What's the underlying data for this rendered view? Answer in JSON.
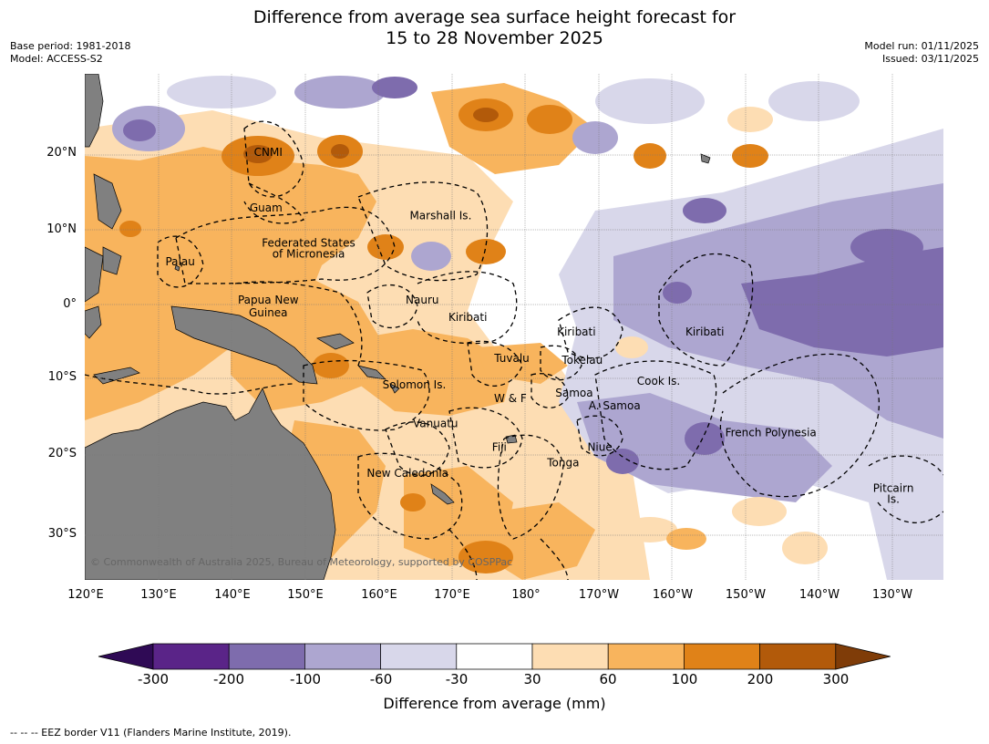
{
  "title_line1": "Difference from average sea surface height forecast for",
  "title_line2": "15 to 28 November 2025",
  "meta_left": {
    "base_period": "Base period: 1981-2018",
    "model": "Model: ACCESS-S2"
  },
  "meta_right": {
    "model_run": "Model run: 01/11/2025",
    "issued": "Issued: 03/11/2025"
  },
  "copyright": "© Commonwealth of Australia 2025, Bureau of Meteorology, supported by COSPPac",
  "lat_labels": [
    "20°N",
    "10°N",
    "0°",
    "10°S",
    "20°S",
    "30°S"
  ],
  "lon_labels": [
    "120°E",
    "130°E",
    "140°E",
    "150°E",
    "160°E",
    "170°E",
    "180°",
    "170°W",
    "160°W",
    "150°W",
    "140°W",
    "130°W"
  ],
  "places": [
    {
      "name": "CNMI",
      "lon": 145,
      "lat": 20
    },
    {
      "name": "Guam",
      "lon": 144.7,
      "lat": 12.5
    },
    {
      "name": "Marshall Is.",
      "lon": 168.5,
      "lat": 11.5
    },
    {
      "name": "Federated States",
      "lon": 150.5,
      "lat": 7.8
    },
    {
      "name": "of Micronesia",
      "lon": 150.5,
      "lat": 6.3
    },
    {
      "name": "Palau",
      "lon": 133,
      "lat": 5.3
    },
    {
      "name": "Nauru",
      "lon": 166,
      "lat": 0.1
    },
    {
      "name": "Papua New",
      "lon": 145,
      "lat": 0.1
    },
    {
      "name": "Guinea",
      "lon": 145,
      "lat": -1.6
    },
    {
      "name": "Kiribati",
      "lon": 172.2,
      "lat": -2.2
    },
    {
      "name": "Kiribati",
      "lon": -173,
      "lat": -4.2
    },
    {
      "name": "Kiribati",
      "lon": -155.5,
      "lat": -4.2
    },
    {
      "name": "Tuvalu",
      "lon": 178.2,
      "lat": -7.7
    },
    {
      "name": "Tokelau",
      "lon": -172.2,
      "lat": -8
    },
    {
      "name": "Solomon Is.",
      "lon": 164.9,
      "lat": -11.3
    },
    {
      "name": "Cook Is.",
      "lon": -161.8,
      "lat": -10.8
    },
    {
      "name": "Samoa",
      "lon": -173.3,
      "lat": -12.4
    },
    {
      "name": "W & F",
      "lon": 178,
      "lat": -13.1
    },
    {
      "name": "A. Samoa",
      "lon": -167.8,
      "lat": -14.1
    },
    {
      "name": "Vanuatu",
      "lon": 167.8,
      "lat": -16.5
    },
    {
      "name": "Fiji",
      "lon": 176.5,
      "lat": -19.7
    },
    {
      "name": "Niue",
      "lon": -169.8,
      "lat": -19.7
    },
    {
      "name": "French Polynesia",
      "lon": -146.5,
      "lat": -17.7
    },
    {
      "name": "Tonga",
      "lon": -174.8,
      "lat": -21.8
    },
    {
      "name": "New Caledonia",
      "lon": 164,
      "lat": -23.2
    },
    {
      "name": "Pitcairn",
      "lon": -129.8,
      "lat": -25.2
    },
    {
      "name": "Is.",
      "lon": -129.8,
      "lat": -26.7
    }
  ],
  "colorbar": {
    "ticks": [
      "-300",
      "-200",
      "-100",
      "-60",
      "-30",
      "30",
      "60",
      "100",
      "200",
      "300"
    ],
    "colors": [
      "#5a2488",
      "#7e6cad",
      "#ada6d0",
      "#d8d7ea",
      "#ffffff",
      "#fdddb3",
      "#f8b45d",
      "#e08218",
      "#b25a0a"
    ],
    "under_color": "#2f0a55",
    "over_color": "#7f3c08",
    "label": "Difference from average (mm)"
  },
  "land_color": "#808080",
  "footnote": "--  --  -- EEZ border V11 (Flanders Marine Institute, 2019).",
  "chart_data": {
    "type": "heatmap",
    "title": "Difference from average sea surface height forecast for 15 to 28 November 2025",
    "lon_range": [
      120,
      237
    ],
    "lat_range": [
      -35.5,
      30
    ],
    "levels_mm": [
      -300,
      -200,
      -100,
      -60,
      -30,
      30,
      60,
      100,
      200,
      300
    ],
    "grid": true,
    "regions": [
      {
        "area": "western Pacific / Philippine Sea",
        "level": "60 to 100 mm, patches 100 to 300 mm"
      },
      {
        "area": "Papua New Guinea / Coral Sea / Solomon Sea",
        "level": "60 to 100 mm"
      },
      {
        "area": "north Pacific 20°N–30°N near 150°E–175°E",
        "level": "mixed -100 to 200 mm"
      },
      {
        "area": "central equatorial Pacific 0°–5°S, 170°W–125°W",
        "level": "-200 to -60 mm"
      },
      {
        "area": "French Polynesia 15°S–25°S",
        "level": "-200 to -30 mm"
      },
      {
        "area": "Tasman Sea / New Caledonia",
        "level": "30 to 200 mm"
      }
    ]
  }
}
